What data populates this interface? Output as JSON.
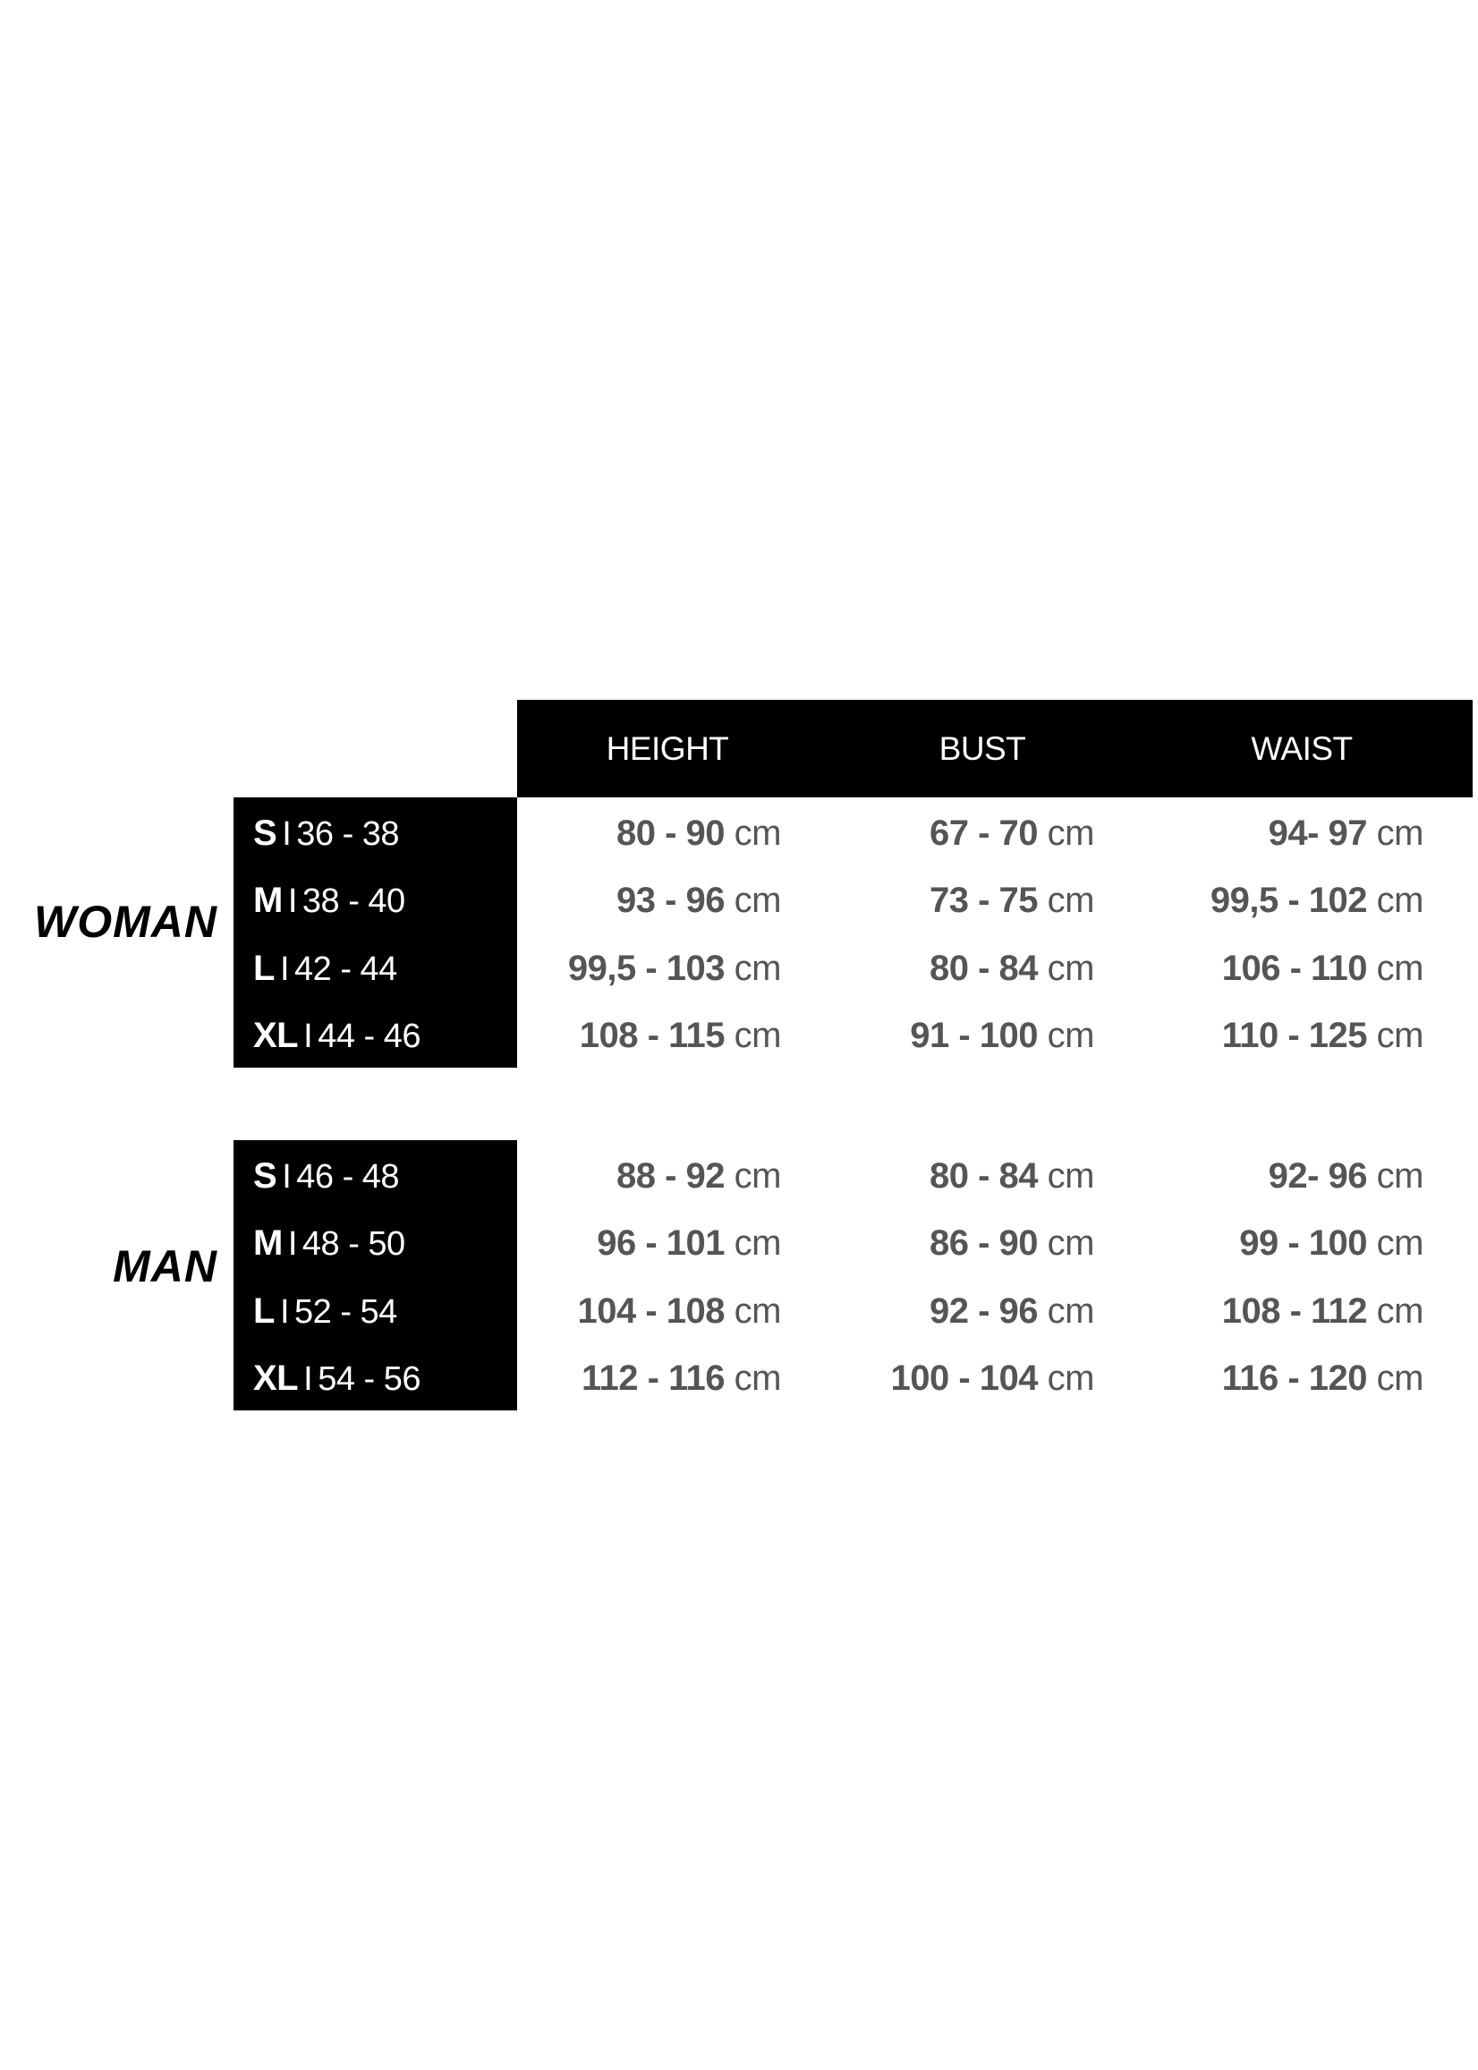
{
  "columns": [
    "HEIGHT",
    "BUST",
    "WAIST"
  ],
  "unit": "cm",
  "groups": [
    {
      "label": "WOMAN",
      "rows": [
        {
          "size": "S",
          "eu": "36 - 38",
          "height": "80 - 90",
          "bust": "67 - 70",
          "waist": "94- 97"
        },
        {
          "size": "M",
          "eu": "38 - 40",
          "height": "93 - 96",
          "bust": "73 - 75",
          "waist": "99,5 - 102"
        },
        {
          "size": "L",
          "eu": "42 - 44",
          "height": "99,5 - 103",
          "bust": "80 - 84",
          "waist": "106 - 110"
        },
        {
          "size": "XL",
          "eu": "44 - 46",
          "height": "108 - 115",
          "bust": "91 - 100",
          "waist": "110 - 125"
        }
      ]
    },
    {
      "label": "MAN",
      "rows": [
        {
          "size": "S",
          "eu": "46 - 48",
          "height": "88 - 92",
          "bust": "80 - 84",
          "waist": "92- 96"
        },
        {
          "size": "M",
          "eu": "48 - 50",
          "height": "96 - 101",
          "bust": "86 - 90",
          "waist": "99 - 100"
        },
        {
          "size": "L",
          "eu": "52 - 54",
          "height": "104 - 108",
          "bust": "92 - 96",
          "waist": "108 - 112"
        },
        {
          "size": "XL",
          "eu": "54 - 56",
          "height": "112 - 116",
          "bust": "100 - 104",
          "waist": "116 - 120"
        }
      ]
    }
  ],
  "separator": "I",
  "colors": {
    "header_bg": "#000000",
    "value_text": "#555555"
  }
}
